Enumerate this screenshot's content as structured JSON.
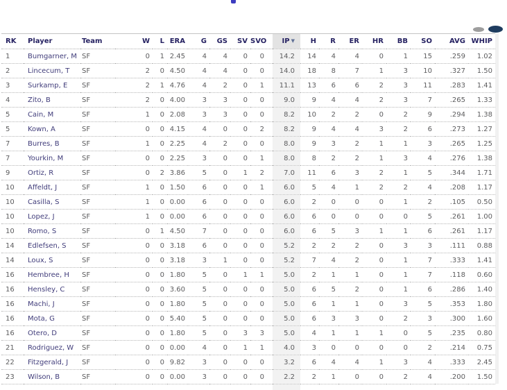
{
  "page": {
    "top_fragment_color": "#3d3dc0",
    "clipped_button_left_color": "#9e9e9e",
    "clipped_button_right_color": "#1e3c5f"
  },
  "colors": {
    "header_text": "#262262",
    "player_link": "#403c7a",
    "stat_value": "#5c5c5e",
    "sorted_header_bg": "#e3e3e3",
    "sorted_column_bg": "#f2f2f2"
  },
  "table": {
    "sort_indicator": "▼",
    "sorted_column": "ip",
    "columns": [
      {
        "key": "rk",
        "label": "RK",
        "align": "left"
      },
      {
        "key": "player",
        "label": "Player",
        "align": "left"
      },
      {
        "key": "team",
        "label": "Team",
        "align": "left"
      },
      {
        "key": "w",
        "label": "W",
        "align": "right"
      },
      {
        "key": "l",
        "label": "L",
        "align": "right"
      },
      {
        "key": "era",
        "label": "ERA",
        "align": "right"
      },
      {
        "key": "g",
        "label": "G",
        "align": "right"
      },
      {
        "key": "gs",
        "label": "GS",
        "align": "right"
      },
      {
        "key": "sv",
        "label": "SV",
        "align": "right"
      },
      {
        "key": "svo",
        "label": "SVO",
        "align": "right"
      },
      {
        "key": "ip",
        "label": "IP",
        "align": "right",
        "sorted": true
      },
      {
        "key": "h",
        "label": "H",
        "align": "right"
      },
      {
        "key": "r",
        "label": "R",
        "align": "right"
      },
      {
        "key": "er",
        "label": "ER",
        "align": "right"
      },
      {
        "key": "hr",
        "label": "HR",
        "align": "right"
      },
      {
        "key": "bb",
        "label": "BB",
        "align": "right"
      },
      {
        "key": "so",
        "label": "SO",
        "align": "right"
      },
      {
        "key": "avg",
        "label": "AVG",
        "align": "right"
      },
      {
        "key": "whip",
        "label": "WHIP",
        "align": "right"
      }
    ],
    "rows": [
      {
        "rk": "1",
        "player": "Bumgarner, M",
        "team": "SF",
        "w": "0",
        "l": "1",
        "era": "2.45",
        "g": "4",
        "gs": "4",
        "sv": "0",
        "svo": "0",
        "ip": "14.2",
        "h": "14",
        "r": "4",
        "er": "4",
        "hr": "0",
        "bb": "1",
        "so": "15",
        "avg": ".259",
        "whip": "1.02"
      },
      {
        "rk": "2",
        "player": "Lincecum, T",
        "team": "SF",
        "w": "2",
        "l": "0",
        "era": "4.50",
        "g": "4",
        "gs": "4",
        "sv": "0",
        "svo": "0",
        "ip": "14.0",
        "h": "18",
        "r": "8",
        "er": "7",
        "hr": "1",
        "bb": "3",
        "so": "10",
        "avg": ".327",
        "whip": "1.50"
      },
      {
        "rk": "3",
        "player": "Surkamp, E",
        "team": "SF",
        "w": "2",
        "l": "1",
        "era": "4.76",
        "g": "4",
        "gs": "2",
        "sv": "0",
        "svo": "1",
        "ip": "11.1",
        "h": "13",
        "r": "6",
        "er": "6",
        "hr": "2",
        "bb": "3",
        "so": "11",
        "avg": ".283",
        "whip": "1.41"
      },
      {
        "rk": "4",
        "player": "Zito, B",
        "team": "SF",
        "w": "2",
        "l": "0",
        "era": "4.00",
        "g": "3",
        "gs": "3",
        "sv": "0",
        "svo": "0",
        "ip": "9.0",
        "h": "9",
        "r": "4",
        "er": "4",
        "hr": "2",
        "bb": "3",
        "so": "7",
        "avg": ".265",
        "whip": "1.33"
      },
      {
        "rk": "5",
        "player": "Cain, M",
        "team": "SF",
        "w": "1",
        "l": "0",
        "era": "2.08",
        "g": "3",
        "gs": "3",
        "sv": "0",
        "svo": "0",
        "ip": "8.2",
        "h": "10",
        "r": "2",
        "er": "2",
        "hr": "0",
        "bb": "2",
        "so": "9",
        "avg": ".294",
        "whip": "1.38"
      },
      {
        "rk": "5",
        "player": "Kown, A",
        "team": "SF",
        "w": "0",
        "l": "0",
        "era": "4.15",
        "g": "4",
        "gs": "0",
        "sv": "0",
        "svo": "2",
        "ip": "8.2",
        "h": "9",
        "r": "4",
        "er": "4",
        "hr": "3",
        "bb": "2",
        "so": "6",
        "avg": ".273",
        "whip": "1.27"
      },
      {
        "rk": "7",
        "player": "Burres, B",
        "team": "SF",
        "w": "1",
        "l": "0",
        "era": "2.25",
        "g": "4",
        "gs": "2",
        "sv": "0",
        "svo": "0",
        "ip": "8.0",
        "h": "9",
        "r": "3",
        "er": "2",
        "hr": "1",
        "bb": "1",
        "so": "3",
        "avg": ".265",
        "whip": "1.25"
      },
      {
        "rk": "7",
        "player": "Yourkin, M",
        "team": "SF",
        "w": "0",
        "l": "0",
        "era": "2.25",
        "g": "3",
        "gs": "0",
        "sv": "0",
        "svo": "1",
        "ip": "8.0",
        "h": "8",
        "r": "2",
        "er": "2",
        "hr": "1",
        "bb": "3",
        "so": "4",
        "avg": ".276",
        "whip": "1.38"
      },
      {
        "rk": "9",
        "player": "Ortiz, R",
        "team": "SF",
        "w": "0",
        "l": "2",
        "era": "3.86",
        "g": "5",
        "gs": "0",
        "sv": "1",
        "svo": "2",
        "ip": "7.0",
        "h": "11",
        "r": "6",
        "er": "3",
        "hr": "2",
        "bb": "1",
        "so": "5",
        "avg": ".344",
        "whip": "1.71"
      },
      {
        "rk": "10",
        "player": "Affeldt, J",
        "team": "SF",
        "w": "1",
        "l": "0",
        "era": "1.50",
        "g": "6",
        "gs": "0",
        "sv": "0",
        "svo": "1",
        "ip": "6.0",
        "h": "5",
        "r": "4",
        "er": "1",
        "hr": "2",
        "bb": "2",
        "so": "4",
        "avg": ".208",
        "whip": "1.17"
      },
      {
        "rk": "10",
        "player": "Casilla, S",
        "team": "SF",
        "w": "1",
        "l": "0",
        "era": "0.00",
        "g": "6",
        "gs": "0",
        "sv": "0",
        "svo": "0",
        "ip": "6.0",
        "h": "2",
        "r": "0",
        "er": "0",
        "hr": "0",
        "bb": "1",
        "so": "2",
        "avg": ".105",
        "whip": "0.50"
      },
      {
        "rk": "10",
        "player": "Lopez, J",
        "team": "SF",
        "w": "1",
        "l": "0",
        "era": "0.00",
        "g": "6",
        "gs": "0",
        "sv": "0",
        "svo": "0",
        "ip": "6.0",
        "h": "6",
        "r": "0",
        "er": "0",
        "hr": "0",
        "bb": "0",
        "so": "5",
        "avg": ".261",
        "whip": "1.00"
      },
      {
        "rk": "10",
        "player": "Romo, S",
        "team": "SF",
        "w": "0",
        "l": "1",
        "era": "4.50",
        "g": "7",
        "gs": "0",
        "sv": "0",
        "svo": "0",
        "ip": "6.0",
        "h": "6",
        "r": "5",
        "er": "3",
        "hr": "1",
        "bb": "1",
        "so": "6",
        "avg": ".261",
        "whip": "1.17"
      },
      {
        "rk": "14",
        "player": "Edlefsen, S",
        "team": "SF",
        "w": "0",
        "l": "0",
        "era": "3.18",
        "g": "6",
        "gs": "0",
        "sv": "0",
        "svo": "0",
        "ip": "5.2",
        "h": "2",
        "r": "2",
        "er": "2",
        "hr": "0",
        "bb": "3",
        "so": "3",
        "avg": ".111",
        "whip": "0.88"
      },
      {
        "rk": "14",
        "player": "Loux, S",
        "team": "SF",
        "w": "0",
        "l": "0",
        "era": "3.18",
        "g": "3",
        "gs": "1",
        "sv": "0",
        "svo": "0",
        "ip": "5.2",
        "h": "7",
        "r": "4",
        "er": "2",
        "hr": "0",
        "bb": "1",
        "so": "7",
        "avg": ".333",
        "whip": "1.41"
      },
      {
        "rk": "16",
        "player": "Hembree, H",
        "team": "SF",
        "w": "0",
        "l": "0",
        "era": "1.80",
        "g": "5",
        "gs": "0",
        "sv": "1",
        "svo": "1",
        "ip": "5.0",
        "h": "2",
        "r": "1",
        "er": "1",
        "hr": "0",
        "bb": "1",
        "so": "7",
        "avg": ".118",
        "whip": "0.60"
      },
      {
        "rk": "16",
        "player": "Hensley, C",
        "team": "SF",
        "w": "0",
        "l": "0",
        "era": "3.60",
        "g": "5",
        "gs": "0",
        "sv": "0",
        "svo": "0",
        "ip": "5.0",
        "h": "6",
        "r": "5",
        "er": "2",
        "hr": "0",
        "bb": "1",
        "so": "6",
        "avg": ".286",
        "whip": "1.40"
      },
      {
        "rk": "16",
        "player": "Machi, J",
        "team": "SF",
        "w": "0",
        "l": "0",
        "era": "1.80",
        "g": "5",
        "gs": "0",
        "sv": "0",
        "svo": "0",
        "ip": "5.0",
        "h": "6",
        "r": "1",
        "er": "1",
        "hr": "0",
        "bb": "3",
        "so": "5",
        "avg": ".353",
        "whip": "1.80"
      },
      {
        "rk": "16",
        "player": "Mota, G",
        "team": "SF",
        "w": "0",
        "l": "0",
        "era": "5.40",
        "g": "5",
        "gs": "0",
        "sv": "0",
        "svo": "0",
        "ip": "5.0",
        "h": "6",
        "r": "3",
        "er": "3",
        "hr": "0",
        "bb": "2",
        "so": "3",
        "avg": ".300",
        "whip": "1.60"
      },
      {
        "rk": "16",
        "player": "Otero, D",
        "team": "SF",
        "w": "0",
        "l": "0",
        "era": "1.80",
        "g": "5",
        "gs": "0",
        "sv": "3",
        "svo": "3",
        "ip": "5.0",
        "h": "4",
        "r": "1",
        "er": "1",
        "hr": "1",
        "bb": "0",
        "so": "5",
        "avg": ".235",
        "whip": "0.80"
      },
      {
        "rk": "21",
        "player": "Rodriguez, W",
        "team": "SF",
        "w": "0",
        "l": "0",
        "era": "0.00",
        "g": "4",
        "gs": "0",
        "sv": "1",
        "svo": "1",
        "ip": "4.0",
        "h": "3",
        "r": "0",
        "er": "0",
        "hr": "0",
        "bb": "0",
        "so": "2",
        "avg": ".214",
        "whip": "0.75"
      },
      {
        "rk": "22",
        "player": "Fitzgerald, J",
        "team": "SF",
        "w": "0",
        "l": "0",
        "era": "9.82",
        "g": "3",
        "gs": "0",
        "sv": "0",
        "svo": "0",
        "ip": "3.2",
        "h": "6",
        "r": "4",
        "er": "4",
        "hr": "1",
        "bb": "3",
        "so": "4",
        "avg": ".333",
        "whip": "2.45"
      },
      {
        "rk": "23",
        "player": "Wilson, B",
        "team": "SF",
        "w": "0",
        "l": "0",
        "era": "0.00",
        "g": "3",
        "gs": "0",
        "sv": "0",
        "svo": "0",
        "ip": "2.2",
        "h": "2",
        "r": "1",
        "er": "0",
        "hr": "0",
        "bb": "2",
        "so": "4",
        "avg": ".200",
        "whip": "1.50"
      }
    ]
  }
}
